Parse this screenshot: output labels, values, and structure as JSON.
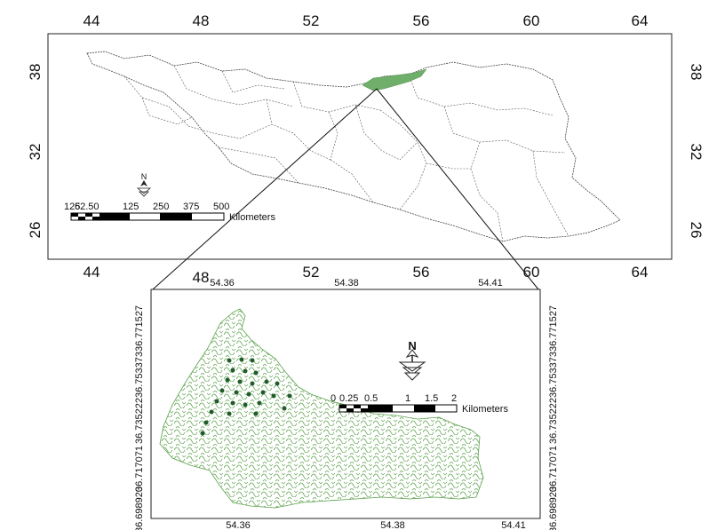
{
  "map_top": {
    "x_ticks": [
      "44",
      "48",
      "52",
      "56",
      "60",
      "64"
    ],
    "y_ticks": [
      "38",
      "32",
      "26"
    ],
    "highlight_color": "#6fae6b",
    "scale_bar": {
      "labels": [
        "125",
        "62.50",
        "125",
        "250",
        "375",
        "500"
      ],
      "unit": "Kilometers"
    },
    "north_arrow": {
      "label": "N",
      "icon": "north-arrow-icon"
    }
  },
  "map_bottom": {
    "x_ticks": [
      "54.36",
      "54.38",
      "54.41"
    ],
    "y_ticks": [
      "36.771527",
      "36.753373",
      "36.735222",
      "36.717071",
      "36.698920"
    ],
    "fill_color": "#5aa14a",
    "point_color": "#1f5c2a",
    "scale_bar": {
      "labels": [
        "0",
        "0.25",
        "0.5",
        "1",
        "1.5",
        "2"
      ],
      "unit": "Kilometers"
    },
    "north_arrow": {
      "label": "N",
      "icon": "north-arrow-icon"
    }
  }
}
